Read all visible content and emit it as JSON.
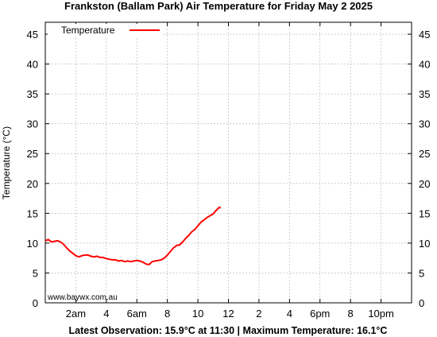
{
  "chart_data": {
    "type": "line",
    "title": "Frankston (Ballam Park) Air Temperature  for Friday May 2 2025",
    "ylabel": "Temperature (°C)",
    "xlabel": "",
    "footer": "Latest Observation: 15.9°C at 11:30 | Maximum Temperature: 16.1°C",
    "watermark": "www.baywx.com.au",
    "legend_position": "top-left",
    "grid": true,
    "ylim": [
      0,
      47
    ],
    "xlim_hours": [
      0,
      24
    ],
    "y_ticks": [
      0,
      5,
      10,
      15,
      20,
      25,
      30,
      35,
      40,
      45
    ],
    "x_ticks": [
      {
        "hour": 2,
        "label": "2am"
      },
      {
        "hour": 4,
        "label": "4"
      },
      {
        "hour": 6,
        "label": "6am"
      },
      {
        "hour": 8,
        "label": "8"
      },
      {
        "hour": 10,
        "label": "10"
      },
      {
        "hour": 12,
        "label": "12"
      },
      {
        "hour": 14,
        "label": "2"
      },
      {
        "hour": 16,
        "label": "4"
      },
      {
        "hour": 18,
        "label": "6pm"
      },
      {
        "hour": 20,
        "label": "8"
      },
      {
        "hour": 22,
        "label": "10pm"
      }
    ],
    "series": [
      {
        "name": "Temperature",
        "color": "#ff0000",
        "points": [
          [
            0.0,
            10.4
          ],
          [
            0.2,
            10.6
          ],
          [
            0.4,
            10.2
          ],
          [
            0.6,
            10.3
          ],
          [
            0.8,
            10.4
          ],
          [
            1.0,
            10.2
          ],
          [
            1.2,
            9.8
          ],
          [
            1.4,
            9.2
          ],
          [
            1.6,
            8.7
          ],
          [
            1.8,
            8.3
          ],
          [
            2.0,
            7.9
          ],
          [
            2.2,
            7.7
          ],
          [
            2.4,
            7.9
          ],
          [
            2.6,
            8.0
          ],
          [
            2.8,
            8.0
          ],
          [
            3.0,
            7.8
          ],
          [
            3.2,
            7.7
          ],
          [
            3.4,
            7.8
          ],
          [
            3.6,
            7.6
          ],
          [
            3.8,
            7.6
          ],
          [
            4.0,
            7.4
          ],
          [
            4.2,
            7.3
          ],
          [
            4.4,
            7.2
          ],
          [
            4.6,
            7.2
          ],
          [
            4.8,
            7.0
          ],
          [
            5.0,
            7.1
          ],
          [
            5.2,
            6.9
          ],
          [
            5.4,
            7.0
          ],
          [
            5.6,
            6.9
          ],
          [
            5.8,
            7.0
          ],
          [
            6.0,
            7.1
          ],
          [
            6.2,
            7.0
          ],
          [
            6.4,
            6.8
          ],
          [
            6.6,
            6.5
          ],
          [
            6.8,
            6.4
          ],
          [
            7.0,
            6.9
          ],
          [
            7.2,
            7.0
          ],
          [
            7.4,
            7.1
          ],
          [
            7.6,
            7.2
          ],
          [
            7.8,
            7.5
          ],
          [
            8.0,
            8.0
          ],
          [
            8.2,
            8.6
          ],
          [
            8.4,
            9.2
          ],
          [
            8.6,
            9.6
          ],
          [
            8.8,
            9.7
          ],
          [
            9.0,
            10.2
          ],
          [
            9.2,
            10.8
          ],
          [
            9.4,
            11.3
          ],
          [
            9.6,
            11.9
          ],
          [
            9.8,
            12.3
          ],
          [
            10.0,
            12.9
          ],
          [
            10.2,
            13.5
          ],
          [
            10.4,
            13.9
          ],
          [
            10.6,
            14.3
          ],
          [
            10.8,
            14.6
          ],
          [
            11.0,
            14.9
          ],
          [
            11.2,
            15.5
          ],
          [
            11.4,
            16.0
          ],
          [
            11.5,
            15.9
          ]
        ]
      }
    ]
  }
}
